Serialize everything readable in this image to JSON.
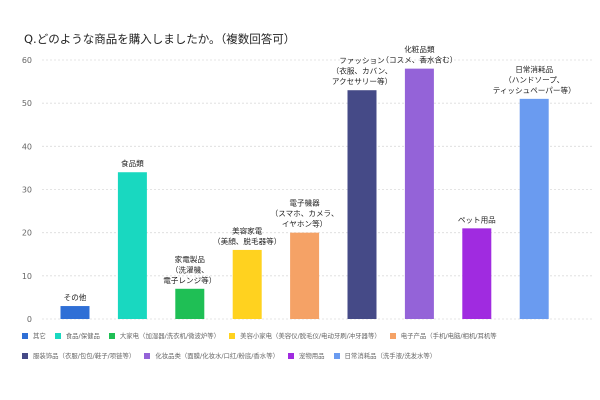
{
  "chart_data": {
    "type": "bar",
    "title": "Q.どのような商品を購入しましたか。（複数回答可）",
    "ylim": [
      0,
      60
    ],
    "yticks": [
      0,
      10,
      20,
      30,
      40,
      50,
      60
    ],
    "grid": true,
    "bars": [
      {
        "label": [
          "その他"
        ],
        "value": 3,
        "color": "#2f6fd6"
      },
      {
        "label": [
          "食品類"
        ],
        "value": 34,
        "color": "#19d8c0"
      },
      {
        "label": [
          "家電製品",
          "（洗濯機、",
          "電子レンジ等）"
        ],
        "value": 7,
        "color": "#1fbf55"
      },
      {
        "label": [
          "美容家電",
          "（美顔、脱毛器等）"
        ],
        "value": 16,
        "color": "#ffd21f"
      },
      {
        "label": [
          "電子機器",
          "（スマホ、カメラ、",
          "イヤホン等）"
        ],
        "value": 20,
        "color": "#f5a266"
      },
      {
        "label": [
          "ファッション",
          "（衣服、カバン、",
          "アクセサリー等）"
        ],
        "value": 53,
        "color": "#454a87"
      },
      {
        "label": [
          "化粧品類",
          "（コスメ、香水含む）"
        ],
        "value": 58,
        "color": "#9463d8"
      },
      {
        "label": [
          "ペット用品"
        ],
        "value": 21,
        "color": "#a02be0"
      },
      {
        "label": [
          "日常消耗品",
          "（ハンドソープ、",
          "ティッシュペーパー等）"
        ],
        "value": 51,
        "color": "#6a9bf0"
      }
    ],
    "legend": [
      [
        {
          "label": "其它",
          "color": "#2f6fd6"
        },
        {
          "label": "食品/保健品",
          "color": "#19d8c0"
        },
        {
          "label": "大家电（加湿器/洗衣机/微波炉等）",
          "color": "#1fbf55"
        },
        {
          "label": "美容小家电（美容仪/脱毛仪/电动牙刷/冲牙器等）",
          "color": "#ffd21f"
        },
        {
          "label": "电子产品（手机/电脑/相机/耳机等",
          "color": "#f5a266"
        }
      ],
      [
        {
          "label": "服装饰品（衣服/包包/鞋子/项链等）",
          "color": "#454a87"
        },
        {
          "label": "化妆品类（面膜/化妆水/口红/粉底/香水等）",
          "color": "#9463d8"
        },
        {
          "label": "宠物用品",
          "color": "#a02be0"
        },
        {
          "label": "日常消耗品（洗手液/洗发水等）",
          "color": "#6a9bf0"
        }
      ]
    ]
  }
}
